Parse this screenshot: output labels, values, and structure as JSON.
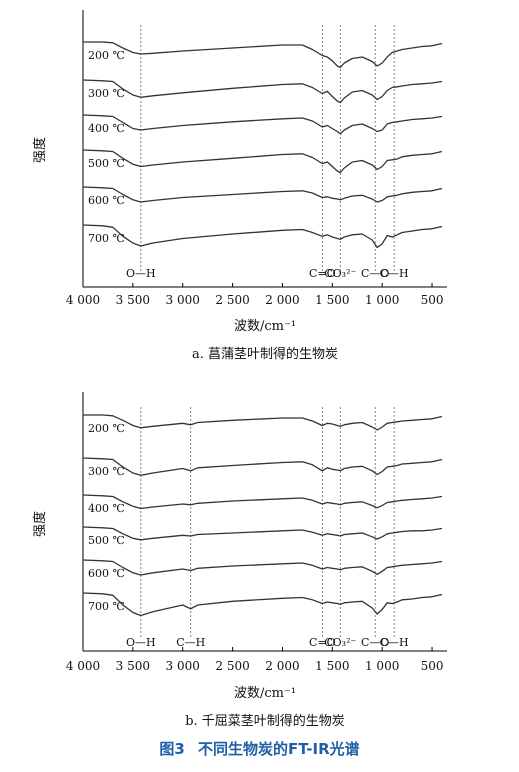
{
  "figure_caption": {
    "number": "图3",
    "text": "不同生物炭的FT-IR光谱"
  },
  "chart_data": [
    {
      "type": "line",
      "subtitle": "a. 菖蒲茎叶制得的生物炭",
      "xlabel": "波数/cm⁻¹",
      "ylabel": "强度",
      "xlim": [
        4000,
        350
      ],
      "x_reversed": true,
      "xticks": [
        4000,
        3500,
        3000,
        2500,
        2000,
        1500,
        1000,
        500
      ],
      "xtick_labels": [
        "4 000",
        "3 500",
        "3 000",
        "2 500",
        "2 000",
        "1 500",
        "1 000",
        "500"
      ],
      "grid": false,
      "band_markers": [
        {
          "label": "O—H",
          "x": 3420
        },
        {
          "label": "C=O",
          "x": 1600
        },
        {
          "label": "CO₃²⁻",
          "x": 1420
        },
        {
          "label": "C—O",
          "x": 1070
        },
        {
          "label": "C—H",
          "x": 880
        }
      ],
      "series": [
        {
          "name": "200 ℃",
          "x": [
            4000,
            3800,
            3700,
            3600,
            3500,
            3420,
            3300,
            3000,
            2500,
            2000,
            1800,
            1700,
            1600,
            1550,
            1500,
            1450,
            1420,
            1380,
            1300,
            1200,
            1100,
            1050,
            1000,
            950,
            900,
            850,
            800,
            700,
            600,
            500,
            400
          ],
          "y": [
            100,
            100,
            99,
            92,
            86,
            84,
            85,
            88,
            92,
            96,
            96,
            90,
            82,
            80,
            75,
            68,
            66,
            72,
            78,
            80,
            74,
            68,
            72,
            80,
            86,
            88,
            90,
            92,
            94,
            95,
            98
          ]
        },
        {
          "name": "300 ℃",
          "x": [
            4000,
            3800,
            3700,
            3600,
            3500,
            3420,
            3300,
            3000,
            2500,
            2000,
            1800,
            1700,
            1600,
            1550,
            1500,
            1450,
            1420,
            1380,
            1300,
            1200,
            1100,
            1050,
            1000,
            950,
            900,
            850,
            800,
            700,
            600,
            500,
            400
          ],
          "y": [
            100,
            99,
            98,
            88,
            80,
            77,
            79,
            83,
            89,
            94,
            95,
            90,
            82,
            85,
            78,
            72,
            70,
            76,
            84,
            86,
            80,
            74,
            78,
            86,
            90,
            91,
            92,
            94,
            95,
            96,
            98
          ]
        },
        {
          "name": "400 ℃",
          "x": [
            4000,
            3800,
            3700,
            3600,
            3500,
            3420,
            3300,
            3000,
            2500,
            2000,
            1800,
            1700,
            1600,
            1550,
            1500,
            1450,
            1420,
            1380,
            1300,
            1200,
            1100,
            1050,
            1000,
            950,
            900,
            850,
            800,
            700,
            600,
            500,
            400
          ],
          "y": [
            100,
            99,
            98,
            90,
            82,
            80,
            82,
            86,
            91,
            95,
            96,
            92,
            84,
            86,
            82,
            78,
            75,
            80,
            86,
            88,
            82,
            78,
            80,
            88,
            90,
            91,
            92,
            94,
            95,
            96,
            98
          ]
        },
        {
          "name": "500 ℃",
          "x": [
            4000,
            3800,
            3700,
            3600,
            3500,
            3420,
            3300,
            3000,
            2500,
            2000,
            1800,
            1700,
            1600,
            1550,
            1500,
            1450,
            1420,
            1380,
            1300,
            1200,
            1100,
            1050,
            1000,
            950,
            900,
            850,
            800,
            700,
            600,
            500,
            400
          ],
          "y": [
            100,
            99,
            98,
            89,
            81,
            78,
            80,
            84,
            89,
            94,
            95,
            90,
            82,
            84,
            78,
            72,
            70,
            76,
            84,
            86,
            80,
            74,
            78,
            86,
            87,
            88,
            91,
            93,
            94,
            95,
            98
          ]
        },
        {
          "name": "600 ℃",
          "x": [
            4000,
            3800,
            3700,
            3600,
            3500,
            3420,
            3300,
            3000,
            2500,
            2000,
            1800,
            1700,
            1600,
            1550,
            1500,
            1450,
            1420,
            1380,
            1300,
            1200,
            1100,
            1050,
            1000,
            950,
            900,
            850,
            800,
            700,
            600,
            500,
            400
          ],
          "y": [
            100,
            99,
            98,
            90,
            83,
            80,
            82,
            86,
            90,
            94,
            95,
            92,
            86,
            87,
            85,
            84,
            83,
            85,
            88,
            89,
            84,
            80,
            82,
            87,
            88,
            89,
            91,
            93,
            94,
            95,
            98
          ]
        },
        {
          "name": "700 ℃",
          "x": [
            4000,
            3800,
            3700,
            3600,
            3500,
            3420,
            3300,
            3000,
            2500,
            2000,
            1800,
            1700,
            1600,
            1550,
            1500,
            1450,
            1420,
            1380,
            1300,
            1200,
            1100,
            1050,
            1000,
            950,
            900,
            850,
            800,
            700,
            600,
            500,
            400
          ],
          "y": [
            100,
            99,
            97,
            85,
            76,
            72,
            76,
            82,
            88,
            93,
            94,
            90,
            85,
            87,
            84,
            82,
            81,
            84,
            87,
            88,
            80,
            70,
            75,
            86,
            84,
            87,
            90,
            92,
            94,
            95,
            98
          ]
        }
      ]
    },
    {
      "type": "line",
      "subtitle": "b. 千屈菜茎叶制得的生物炭",
      "xlabel": "波数/cm⁻¹",
      "ylabel": "强度",
      "xlim": [
        4000,
        350
      ],
      "x_reversed": true,
      "xticks": [
        4000,
        3500,
        3000,
        2500,
        2000,
        1500,
        1000,
        500
      ],
      "xtick_labels": [
        "4 000",
        "3 500",
        "3 000",
        "2 500",
        "2 000",
        "1 500",
        "1 000",
        "500"
      ],
      "grid": false,
      "band_markers": [
        {
          "label": "O—H",
          "x": 3420
        },
        {
          "label": "C—H",
          "x": 2920
        },
        {
          "label": "C=O",
          "x": 1600
        },
        {
          "label": "CO₃²⁻",
          "x": 1420
        },
        {
          "label": "C—O",
          "x": 1070
        },
        {
          "label": "C—H",
          "x": 880
        }
      ],
      "series": [
        {
          "name": "200 ℃",
          "x": [
            4000,
            3800,
            3700,
            3600,
            3500,
            3420,
            3300,
            3000,
            2920,
            2850,
            2500,
            2000,
            1800,
            1700,
            1600,
            1550,
            1500,
            1450,
            1420,
            1380,
            1300,
            1200,
            1100,
            1050,
            1000,
            950,
            900,
            850,
            800,
            700,
            600,
            500,
            400
          ],
          "y": [
            100,
            100,
            99,
            93,
            86,
            83,
            85,
            89,
            87,
            90,
            93,
            96,
            96,
            92,
            86,
            89,
            88,
            86,
            85,
            87,
            89,
            90,
            84,
            80,
            84,
            89,
            90,
            91,
            92,
            93,
            94,
            95,
            98
          ]
        },
        {
          "name": "300 ℃",
          "x": [
            4000,
            3800,
            3700,
            3600,
            3500,
            3420,
            3300,
            3000,
            2920,
            2850,
            2500,
            2000,
            1800,
            1700,
            1600,
            1550,
            1500,
            1450,
            1420,
            1380,
            1300,
            1200,
            1100,
            1050,
            1000,
            950,
            900,
            850,
            800,
            700,
            600,
            500,
            400
          ],
          "y": [
            100,
            99,
            98,
            88,
            80,
            77,
            80,
            86,
            83,
            87,
            90,
            94,
            95,
            91,
            83,
            87,
            85,
            84,
            83,
            86,
            88,
            89,
            83,
            78,
            82,
            88,
            89,
            90,
            92,
            93,
            94,
            95,
            98
          ]
        },
        {
          "name": "400 ℃",
          "x": [
            4000,
            3800,
            3700,
            3600,
            3500,
            3420,
            3300,
            3000,
            2920,
            2850,
            2500,
            2000,
            1800,
            1700,
            1600,
            1550,
            1500,
            1450,
            1420,
            1380,
            1300,
            1200,
            1100,
            1050,
            1000,
            950,
            900,
            850,
            800,
            700,
            600,
            500,
            400
          ],
          "y": [
            100,
            99,
            98,
            91,
            85,
            82,
            84,
            88,
            87,
            89,
            92,
            95,
            96,
            93,
            88,
            90,
            89,
            88,
            87,
            89,
            90,
            91,
            86,
            83,
            86,
            90,
            91,
            92,
            93,
            94,
            95,
            96,
            98
          ]
        },
        {
          "name": "500 ℃",
          "x": [
            4000,
            3800,
            3700,
            3600,
            3500,
            3420,
            3300,
            3000,
            2920,
            2850,
            2500,
            2000,
            1800,
            1700,
            1600,
            1550,
            1500,
            1450,
            1420,
            1380,
            1300,
            1200,
            1100,
            1050,
            1000,
            950,
            900,
            850,
            800,
            700,
            600,
            500,
            400
          ],
          "y": [
            100,
            99,
            98,
            91,
            85,
            83,
            85,
            89,
            88,
            90,
            92,
            95,
            96,
            93,
            89,
            91,
            90,
            89,
            88,
            90,
            91,
            92,
            87,
            84,
            87,
            91,
            92,
            93,
            94,
            95,
            95,
            96,
            98
          ]
        },
        {
          "name": "600 ℃",
          "x": [
            4000,
            3800,
            3700,
            3600,
            3500,
            3420,
            3300,
            3000,
            2920,
            2850,
            2500,
            2000,
            1800,
            1700,
            1600,
            1550,
            1500,
            1450,
            1420,
            1380,
            1300,
            1200,
            1100,
            1050,
            1000,
            950,
            900,
            850,
            800,
            700,
            600,
            500,
            400
          ],
          "y": [
            100,
            99,
            98,
            90,
            83,
            80,
            83,
            88,
            86,
            89,
            92,
            95,
            96,
            93,
            88,
            90,
            89,
            88,
            87,
            89,
            90,
            91,
            85,
            81,
            85,
            90,
            91,
            92,
            93,
            94,
            95,
            96,
            98
          ]
        },
        {
          "name": "700 ℃",
          "x": [
            4000,
            3800,
            3700,
            3600,
            3500,
            3420,
            3300,
            3000,
            2920,
            2850,
            2500,
            2000,
            1800,
            1700,
            1600,
            1550,
            1500,
            1450,
            1420,
            1380,
            1300,
            1200,
            1100,
            1050,
            1000,
            950,
            900,
            850,
            800,
            700,
            600,
            500,
            400
          ],
          "y": [
            100,
            99,
            97,
            84,
            74,
            70,
            75,
            84,
            79,
            84,
            89,
            93,
            94,
            91,
            86,
            88,
            87,
            86,
            85,
            87,
            88,
            89,
            80,
            72,
            78,
            87,
            86,
            88,
            91,
            92,
            94,
            95,
            98
          ]
        }
      ]
    }
  ]
}
